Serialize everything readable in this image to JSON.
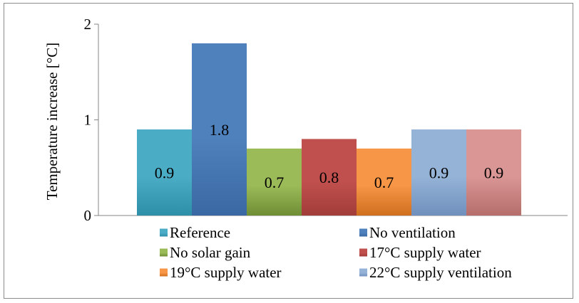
{
  "chart_data": {
    "type": "bar",
    "title": "",
    "xlabel": "",
    "ylabel": "Temperature increase [°C]",
    "ylim": [
      0,
      2
    ],
    "yticks": [
      "0",
      "1",
      "2"
    ],
    "grid": false,
    "legend_placement": "bottom",
    "series": [
      {
        "name": "Reference",
        "value": 0.9,
        "label": "0.9",
        "color": "#4BACC6",
        "color_dark": "#2E8FA8"
      },
      {
        "name": "No ventilation",
        "value": 1.8,
        "label": "1.8",
        "color": "#4F81BD",
        "color_dark": "#3A68A2"
      },
      {
        "name": "No solar gain",
        "value": 0.7,
        "label": "0.7",
        "color": "#9BBB59",
        "color_dark": "#6F8E35"
      },
      {
        "name": "17°C supply water",
        "value": 0.8,
        "label": "0.8",
        "color": "#C0504D",
        "color_dark": "#A23D3A"
      },
      {
        "name": "19°C supply water",
        "value": 0.7,
        "label": "0.7",
        "color": "#F79646",
        "color_dark": "#D0701F"
      },
      {
        "name": "22°C supply ventilation",
        "value": 0.9,
        "label": "0.9",
        "color": "#95B3D7",
        "color_dark": "#7090BD"
      },
      {
        "name": "",
        "value": 0.9,
        "label": "0.9",
        "color": "#D99694",
        "color_dark": "#B56E6C"
      }
    ]
  }
}
